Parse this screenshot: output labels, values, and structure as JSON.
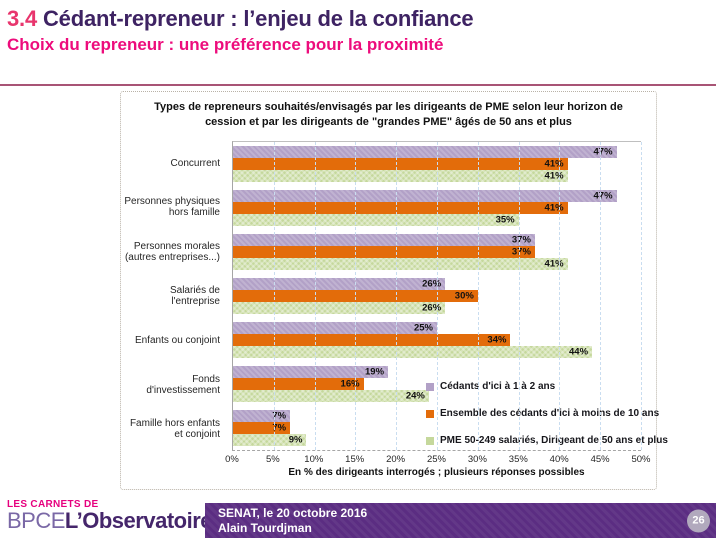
{
  "header": {
    "section_number": "3.4",
    "title": "Cédant-repreneur : l’enjeu de la confiance",
    "subtitle": "Choix du repreneur : une préférence pour la proximité"
  },
  "chart_data": {
    "type": "bar",
    "orientation": "horizontal",
    "title": "Types de repreneurs souhaités/envisagés  par les dirigeants de PME selon leur horizon de cession et par  les dirigeants de \"grandes PME\" âgés de 50 ans et plus",
    "categories": [
      "Concurrent",
      "Personnes physiques hors famille",
      "Personnes morales (autres entreprises...)",
      "Salariés de l'entreprise",
      "Enfants ou conjoint",
      "Fonds d'investissement",
      "Famille hors enfants et conjoint"
    ],
    "series": [
      {
        "name": "Cédants d'ici à 1 à 2 ans",
        "color": "#b2a1c7",
        "values": [
          47,
          47,
          37,
          26,
          25,
          19,
          7
        ]
      },
      {
        "name": "Ensemble des cédants d'ici à moins de 10 ans",
        "color": "#e36c0a",
        "values": [
          41,
          41,
          37,
          30,
          34,
          16,
          7
        ]
      },
      {
        "name": "PME 50-249 salariés, Dirigeant de 50 ans et plus",
        "color": "#c5d89c",
        "values": [
          41,
          35,
          41,
          26,
          44,
          24,
          9
        ]
      }
    ],
    "xlabel": "En % des dirigeants interrogés ; plusieurs réponses possibles",
    "xlim": [
      0,
      50
    ],
    "x_ticks": [
      "0%",
      "5%",
      "10%",
      "15%",
      "20%",
      "25%",
      "30%",
      "35%",
      "40%",
      "45%",
      "50%"
    ],
    "grid": true,
    "legend_position": "inside-bottom-right",
    "value_suffix": "%"
  },
  "footer": {
    "brand_top": "LES CARNETS DE",
    "brand_left": "BPCE",
    "brand_right": "L’Observatoire",
    "event": "SENAT, le 20 octobre 2016",
    "author": "Alain Tourdjman",
    "page_number": "26"
  },
  "colors": {
    "accent_pink": "#ed0c7c",
    "accent_purple": "#3e2363",
    "footer_purple": "#5b2d82",
    "bar_purple": "#b2a1c7",
    "bar_orange": "#e36c0a",
    "bar_green": "#c5d89c",
    "gridline_blue": "#c9ddf0"
  }
}
